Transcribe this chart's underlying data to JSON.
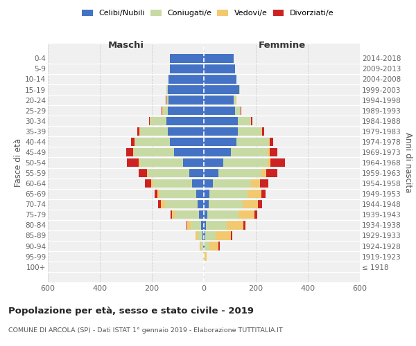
{
  "age_groups": [
    "0-4",
    "5-9",
    "10-14",
    "15-19",
    "20-24",
    "25-29",
    "30-34",
    "35-39",
    "40-44",
    "45-49",
    "50-54",
    "55-59",
    "60-64",
    "65-69",
    "70-74",
    "75-79",
    "80-84",
    "85-89",
    "90-94",
    "95-99",
    "100+"
  ],
  "birth_years": [
    "2014-2018",
    "2009-2013",
    "2004-2008",
    "1999-2003",
    "1994-1998",
    "1989-1993",
    "1984-1988",
    "1979-1983",
    "1974-1978",
    "1969-1973",
    "1964-1968",
    "1959-1963",
    "1954-1958",
    "1949-1953",
    "1944-1948",
    "1939-1943",
    "1934-1938",
    "1929-1933",
    "1924-1928",
    "1919-1923",
    "≤ 1918"
  ],
  "maschi_celibi": [
    130,
    130,
    135,
    140,
    135,
    140,
    145,
    140,
    130,
    115,
    80,
    55,
    45,
    30,
    25,
    18,
    10,
    5,
    2,
    0,
    0
  ],
  "maschi_coniugati": [
    0,
    0,
    0,
    3,
    8,
    18,
    60,
    105,
    135,
    155,
    165,
    160,
    150,
    140,
    125,
    95,
    40,
    20,
    8,
    2,
    0
  ],
  "maschi_vedovi": [
    0,
    0,
    0,
    0,
    1,
    2,
    2,
    2,
    2,
    3,
    5,
    5,
    8,
    10,
    15,
    10,
    15,
    8,
    5,
    1,
    0
  ],
  "maschi_divorziati": [
    0,
    0,
    0,
    0,
    2,
    3,
    5,
    8,
    12,
    25,
    45,
    30,
    25,
    10,
    10,
    5,
    3,
    0,
    0,
    0,
    0
  ],
  "femmine_nubili": [
    115,
    120,
    125,
    135,
    115,
    120,
    130,
    130,
    125,
    105,
    75,
    55,
    35,
    22,
    18,
    12,
    8,
    5,
    2,
    0,
    0
  ],
  "femmine_coniugate": [
    0,
    0,
    0,
    3,
    8,
    20,
    50,
    90,
    125,
    140,
    170,
    165,
    145,
    145,
    130,
    120,
    80,
    40,
    18,
    3,
    0
  ],
  "femmine_vedove": [
    0,
    0,
    0,
    0,
    1,
    2,
    2,
    3,
    4,
    8,
    10,
    20,
    35,
    55,
    60,
    62,
    65,
    60,
    35,
    8,
    1
  ],
  "femmine_divorziate": [
    0,
    0,
    0,
    0,
    0,
    2,
    5,
    8,
    12,
    30,
    58,
    42,
    32,
    15,
    15,
    10,
    8,
    3,
    5,
    0,
    0
  ],
  "color_celibi": "#4472c4",
  "color_coniugati": "#c8daa4",
  "color_vedovi": "#f2c96e",
  "color_divorziati": "#cc2222",
  "xlim": 600,
  "title": "Popolazione per età, sesso e stato civile - 2019",
  "subtitle": "COMUNE DI ARCOLA (SP) - Dati ISTAT 1° gennaio 2019 - Elaborazione TUTTITALIA.IT",
  "ylabel_left": "Fasce di età",
  "ylabel_right": "Anni di nascita",
  "maschi_label": "Maschi",
  "femmine_label": "Femmine",
  "legend_labels": [
    "Celibi/Nubili",
    "Coniugati/e",
    "Vedovi/e",
    "Divorziati/e"
  ]
}
